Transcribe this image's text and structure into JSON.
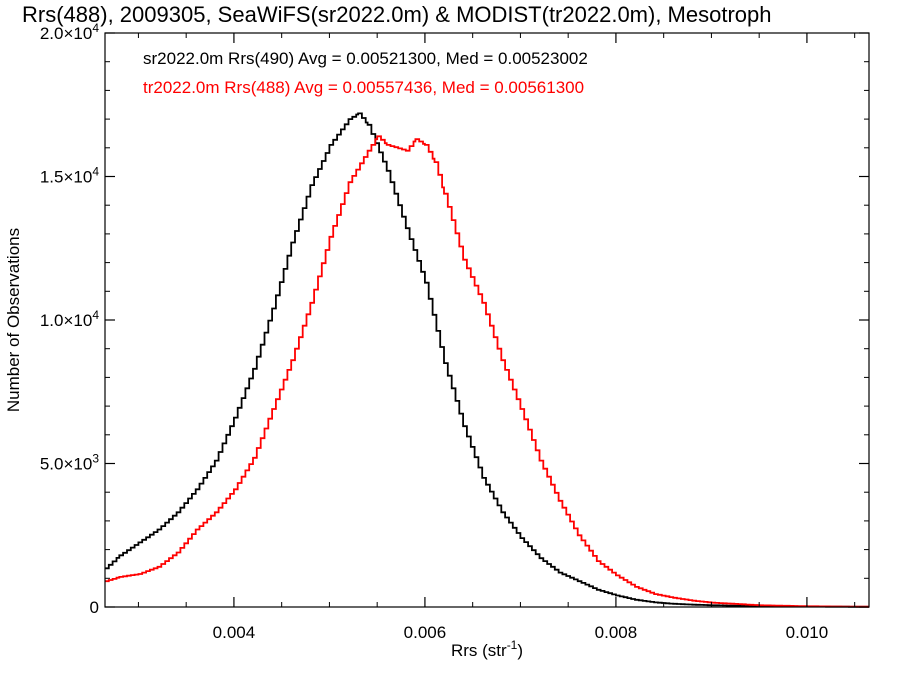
{
  "chart_data": {
    "type": "line",
    "title": "Rrs(488), 2009305, SeaWiFS(sr2022.0m) & MODIST(tr2022.0m), Mesotroph",
    "xlabel": "Rrs (str",
    "xlabel_sup": "-1",
    "xlabel_suffix": ")",
    "ylabel": "Number of Observations",
    "xlim": [
      0.00265,
      0.01065
    ],
    "ylim": [
      0,
      20000
    ],
    "x_ticks": [
      {
        "value": 0.004,
        "label": "0.004"
      },
      {
        "value": 0.006,
        "label": "0.006"
      },
      {
        "value": 0.008,
        "label": "0.008"
      },
      {
        "value": 0.01,
        "label": "0.010"
      }
    ],
    "y_ticks": [
      {
        "value": 0,
        "mant": "0",
        "exp": ""
      },
      {
        "value": 5000,
        "mant": "5.0×10",
        "exp": "3"
      },
      {
        "value": 10000,
        "mant": "1.0×10",
        "exp": "4"
      },
      {
        "value": 15000,
        "mant": "1.5×10",
        "exp": "4"
      },
      {
        "value": 20000,
        "mant": "2.0×10",
        "exp": "4"
      }
    ],
    "grid": false,
    "legend_position": "top-left",
    "series": [
      {
        "name": "sr2022.0m Rrs(490) Avg = 0.00521300, Med = 0.00523002",
        "color": "#000000",
        "points": [
          [
            0.00265,
            1350
          ],
          [
            0.0028,
            1800
          ],
          [
            0.003,
            2250
          ],
          [
            0.0032,
            2700
          ],
          [
            0.0034,
            3300
          ],
          [
            0.0036,
            4100
          ],
          [
            0.0038,
            5100
          ],
          [
            0.004,
            6600
          ],
          [
            0.0042,
            8300
          ],
          [
            0.0044,
            10400
          ],
          [
            0.0046,
            12700
          ],
          [
            0.0048,
            14700
          ],
          [
            0.005,
            16100
          ],
          [
            0.0052,
            17000
          ],
          [
            0.0053,
            17200
          ],
          [
            0.0054,
            16800
          ],
          [
            0.0056,
            15200
          ],
          [
            0.0058,
            13200
          ],
          [
            0.006,
            11300
          ],
          [
            0.0062,
            8500
          ],
          [
            0.0064,
            6300
          ],
          [
            0.0066,
            4500
          ],
          [
            0.0068,
            3300
          ],
          [
            0.007,
            2400
          ],
          [
            0.0072,
            1700
          ],
          [
            0.0074,
            1200
          ],
          [
            0.0076,
            900
          ],
          [
            0.0078,
            600
          ],
          [
            0.008,
            400
          ],
          [
            0.0082,
            250
          ],
          [
            0.0084,
            160
          ],
          [
            0.0086,
            110
          ],
          [
            0.0088,
            80
          ],
          [
            0.009,
            60
          ],
          [
            0.0095,
            30
          ],
          [
            0.01,
            15
          ],
          [
            0.01065,
            5
          ]
        ]
      },
      {
        "name": "tr2022.0m Rrs(488) Avg = 0.00557436, Med = 0.00561300",
        "color": "#ff0000",
        "points": [
          [
            0.00265,
            900
          ],
          [
            0.0028,
            1050
          ],
          [
            0.003,
            1150
          ],
          [
            0.0032,
            1400
          ],
          [
            0.0034,
            1900
          ],
          [
            0.0036,
            2700
          ],
          [
            0.0038,
            3300
          ],
          [
            0.004,
            4100
          ],
          [
            0.0042,
            5200
          ],
          [
            0.0044,
            6900
          ],
          [
            0.0046,
            8600
          ],
          [
            0.0048,
            10600
          ],
          [
            0.005,
            12900
          ],
          [
            0.0052,
            14800
          ],
          [
            0.0054,
            15900
          ],
          [
            0.0055,
            16400
          ],
          [
            0.0056,
            16100
          ],
          [
            0.0058,
            15900
          ],
          [
            0.0059,
            16300
          ],
          [
            0.006,
            16100
          ],
          [
            0.0061,
            15500
          ],
          [
            0.0062,
            14400
          ],
          [
            0.0064,
            12100
          ],
          [
            0.0066,
            10600
          ],
          [
            0.0068,
            8600
          ],
          [
            0.007,
            6900
          ],
          [
            0.0072,
            5100
          ],
          [
            0.0074,
            3700
          ],
          [
            0.0076,
            2500
          ],
          [
            0.0078,
            1600
          ],
          [
            0.008,
            1100
          ],
          [
            0.0082,
            700
          ],
          [
            0.0084,
            450
          ],
          [
            0.0086,
            320
          ],
          [
            0.0088,
            220
          ],
          [
            0.009,
            150
          ],
          [
            0.0095,
            60
          ],
          [
            0.01,
            25
          ],
          [
            0.01065,
            8
          ]
        ]
      }
    ]
  }
}
